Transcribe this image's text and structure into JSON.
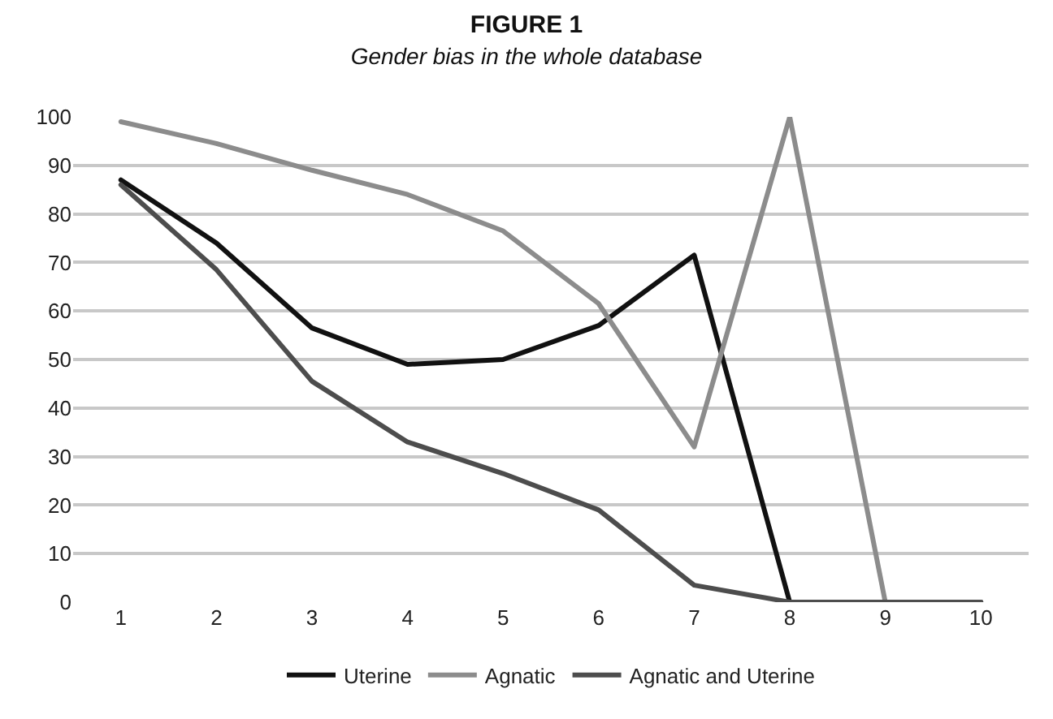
{
  "chart_data": {
    "type": "line",
    "title": "FIGURE 1",
    "subtitle": "Gender bias in the whole database",
    "categories": [
      "1",
      "2",
      "3",
      "4",
      "5",
      "6",
      "7",
      "8",
      "9",
      "10"
    ],
    "series": [
      {
        "name": "Uterine",
        "color": "#111111",
        "values": [
          87,
          74,
          56.5,
          49,
          50,
          57,
          71.5,
          0,
          0,
          0
        ]
      },
      {
        "name": "Agnatic",
        "color": "#8c8c8c",
        "values": [
          99,
          94.5,
          89,
          84,
          76.5,
          61.5,
          32,
          100,
          0,
          0
        ]
      },
      {
        "name": "Agnatic and Uterine",
        "color": "#4d4d4d",
        "values": [
          86,
          68.5,
          45.5,
          33,
          26.5,
          19,
          3.5,
          0,
          0,
          0
        ]
      }
    ],
    "ylim": [
      0,
      100
    ],
    "yticks": [
      0,
      10,
      20,
      30,
      40,
      50,
      60,
      70,
      80,
      90,
      100
    ],
    "grid": "y",
    "legend": "bottom",
    "marker": "none",
    "line_style": "solid"
  }
}
